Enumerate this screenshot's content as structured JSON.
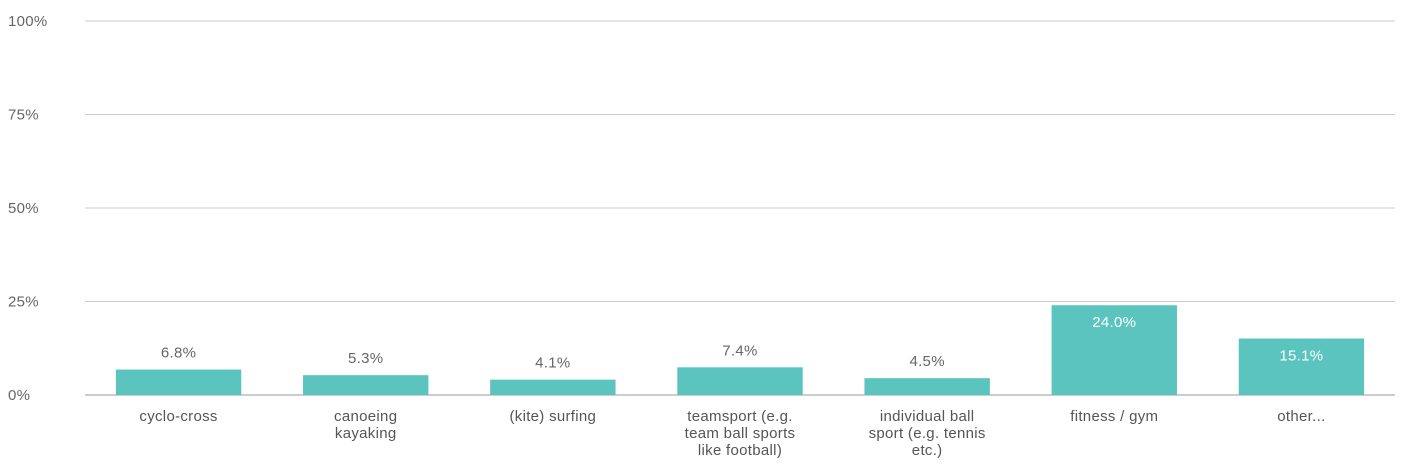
{
  "chart_data": {
    "type": "bar",
    "categories": [
      "cyclo-cross",
      "canoeing kayaking",
      "(kite) surfing",
      "teamsport (e.g. team ball sports like football)",
      "individual ball sport (e.g. tennis etc.)",
      "fitness / gym",
      "other..."
    ],
    "values": [
      6.8,
      5.3,
      4.1,
      7.4,
      4.5,
      24.0,
      15.1
    ],
    "value_labels": [
      "6.8%",
      "5.3%",
      "4.1%",
      "7.4%",
      "4.5%",
      "24.0%",
      "15.1%"
    ],
    "color": "#5bc4bf",
    "ylim": [
      0,
      100
    ],
    "yticks": [
      {
        "value": 0,
        "label": "0%"
      },
      {
        "value": 25,
        "label": "25%"
      },
      {
        "value": 50,
        "label": "50%"
      },
      {
        "value": 75,
        "label": "75%"
      },
      {
        "value": 100,
        "label": "100%"
      }
    ],
    "grid": true
  }
}
